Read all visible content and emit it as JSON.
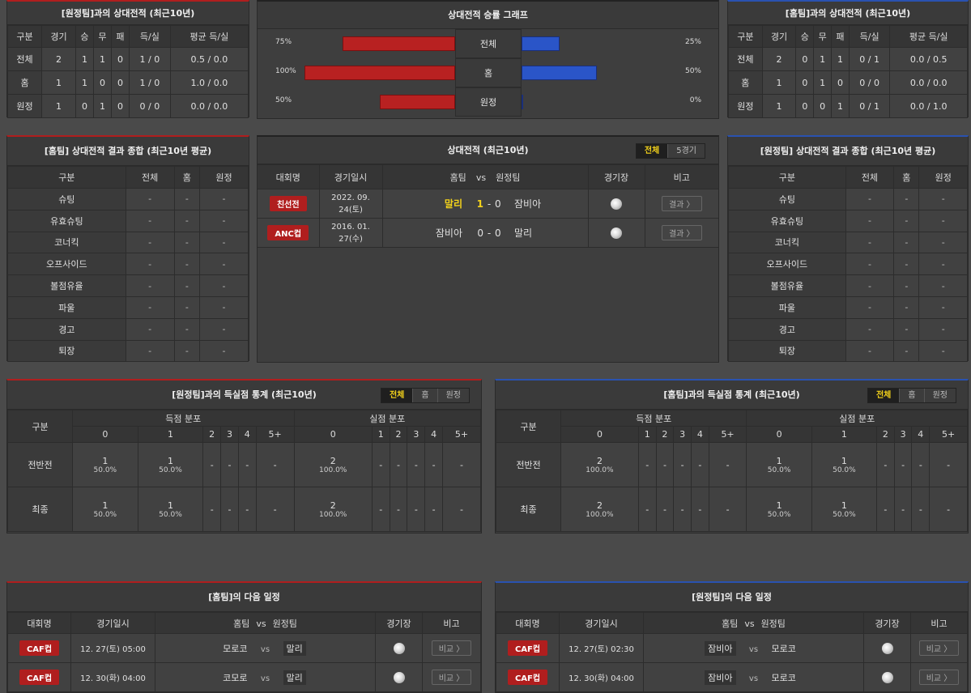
{
  "h2h_away": {
    "title": "[원정팀]과의 상대전적 (최근10년)",
    "headers": [
      "구분",
      "경기",
      "승",
      "무",
      "패",
      "득/실",
      "평균 득/실"
    ],
    "rows": [
      [
        "전체",
        "2",
        "1",
        "1",
        "0",
        "1 / 0",
        "0.5 / 0.0"
      ],
      [
        "홈",
        "1",
        "1",
        "0",
        "0",
        "1 / 0",
        "1.0 / 0.0"
      ],
      [
        "원정",
        "1",
        "0",
        "1",
        "0",
        "0 / 0",
        "0.0 / 0.0"
      ]
    ]
  },
  "graph": {
    "title": "상대전적 승률 그래프",
    "rows": [
      {
        "label": "전체",
        "left_pct": "75%",
        "right_pct": "25%",
        "left": 75,
        "right": 25
      },
      {
        "label": "홈",
        "left_pct": "100%",
        "right_pct": "50%",
        "left": 100,
        "right": 50
      },
      {
        "label": "원정",
        "left_pct": "50%",
        "right_pct": "0%",
        "left": 50,
        "right": 0
      }
    ],
    "colors": {
      "home": "#b82121",
      "away": "#2a55c8"
    }
  },
  "h2h_home": {
    "title": "[홈팀]과의 상대전적 (최근10년)",
    "headers": [
      "구분",
      "경기",
      "승",
      "무",
      "패",
      "득/실",
      "평균 득/실"
    ],
    "rows": [
      [
        "전체",
        "2",
        "0",
        "1",
        "1",
        "0 / 1",
        "0.0 / 0.5"
      ],
      [
        "홈",
        "1",
        "0",
        "1",
        "0",
        "0 / 0",
        "0.0 / 0.0"
      ],
      [
        "원정",
        "1",
        "0",
        "0",
        "1",
        "0 / 1",
        "0.0 / 1.0"
      ]
    ]
  },
  "summary_home": {
    "title": "[홈팀] 상대전적 결과 종합 (최근10년 평균)",
    "headers": [
      "구분",
      "전체",
      "홈",
      "원정"
    ],
    "rows": [
      "슈팅",
      "유효슈팅",
      "코너킥",
      "오프사이드",
      "볼점유율",
      "파울",
      "경고",
      "퇴장"
    ],
    "empty": "-"
  },
  "summary_away": {
    "title": "[원정팀] 상대전적 결과 종합 (최근10년 평균)",
    "headers": [
      "구분",
      "전체",
      "홈",
      "원정"
    ],
    "rows": [
      "슈팅",
      "유효슈팅",
      "코너킥",
      "오프사이드",
      "볼점유율",
      "파울",
      "경고",
      "퇴장"
    ],
    "empty": "-"
  },
  "recent": {
    "title": "상대전적 (최근10년)",
    "toggle": [
      "전체",
      "5경기"
    ],
    "headers": {
      "league": "대회명",
      "date": "경기일시",
      "home": "홈팀",
      "vs": "vs",
      "away": "원정팀",
      "venue": "경기장",
      "note": "비고"
    },
    "matches": [
      {
        "league": "친선전",
        "date": "2022. 09. 24(토)",
        "home": "말리",
        "hs": "1",
        "dash": "-",
        "as": "0",
        "away": "잠비아",
        "btn": "결과 〉"
      },
      {
        "league": "ANC컵",
        "date": "2016. 01. 27(수)",
        "home": "잠비아",
        "hs": "0",
        "dash": "-",
        "as": "0",
        "away": "말리",
        "btn": "결과 〉"
      }
    ]
  },
  "goals_away": {
    "title": "[원정팀]과의 득실점 통계 (최근10년)",
    "toggle": [
      "전체",
      "홈",
      "원정"
    ],
    "h_gubun": "구분",
    "h_scored": "득점 분포",
    "h_conceded": "실점 분포",
    "cols": [
      "0",
      "1",
      "2",
      "3",
      "4",
      "5+"
    ],
    "rows": [
      {
        "label": "전반전",
        "scored": [
          [
            "1",
            "50.0%"
          ],
          [
            "1",
            "50.0%"
          ],
          [
            "-",
            ""
          ],
          [
            "-",
            ""
          ],
          [
            "-",
            ""
          ],
          [
            "-",
            ""
          ]
        ],
        "conceded": [
          [
            "2",
            "100.0%"
          ],
          [
            "-",
            ""
          ],
          [
            "-",
            ""
          ],
          [
            "-",
            ""
          ],
          [
            "-",
            ""
          ],
          [
            "-",
            ""
          ]
        ]
      },
      {
        "label": "최종",
        "scored": [
          [
            "1",
            "50.0%"
          ],
          [
            "1",
            "50.0%"
          ],
          [
            "-",
            ""
          ],
          [
            "-",
            ""
          ],
          [
            "-",
            ""
          ],
          [
            "-",
            ""
          ]
        ],
        "conceded": [
          [
            "2",
            "100.0%"
          ],
          [
            "-",
            ""
          ],
          [
            "-",
            ""
          ],
          [
            "-",
            ""
          ],
          [
            "-",
            ""
          ],
          [
            "-",
            ""
          ]
        ]
      }
    ]
  },
  "goals_home": {
    "title": "[홈팀]과의 득실점 통계 (최근10년)",
    "toggle": [
      "전체",
      "홈",
      "원정"
    ],
    "h_gubun": "구분",
    "h_scored": "득점 분포",
    "h_conceded": "실점 분포",
    "cols": [
      "0",
      "1",
      "2",
      "3",
      "4",
      "5+"
    ],
    "rows": [
      {
        "label": "전반전",
        "scored": [
          [
            "2",
            "100.0%"
          ],
          [
            "-",
            ""
          ],
          [
            "-",
            ""
          ],
          [
            "-",
            ""
          ],
          [
            "-",
            ""
          ],
          [
            "-",
            ""
          ]
        ],
        "conceded": [
          [
            "1",
            "50.0%"
          ],
          [
            "1",
            "50.0%"
          ],
          [
            "-",
            ""
          ],
          [
            "-",
            ""
          ],
          [
            "-",
            ""
          ],
          [
            "-",
            ""
          ]
        ]
      },
      {
        "label": "최종",
        "scored": [
          [
            "2",
            "100.0%"
          ],
          [
            "-",
            ""
          ],
          [
            "-",
            ""
          ],
          [
            "-",
            ""
          ],
          [
            "-",
            ""
          ],
          [
            "-",
            ""
          ]
        ],
        "conceded": [
          [
            "1",
            "50.0%"
          ],
          [
            "1",
            "50.0%"
          ],
          [
            "-",
            ""
          ],
          [
            "-",
            ""
          ],
          [
            "-",
            ""
          ],
          [
            "-",
            ""
          ]
        ]
      }
    ]
  },
  "next_home": {
    "title": "[홈팀]의 다음 일정",
    "headers": {
      "league": "대회명",
      "date": "경기일시",
      "home": "홈팀",
      "vs": "vs",
      "away": "원정팀",
      "venue": "경기장",
      "note": "비고"
    },
    "matches": [
      {
        "league": "CAF컵",
        "date": "12. 27(토) 05:00",
        "home": "모로코",
        "vs": "vs",
        "away": "말리",
        "btn": "비교 〉",
        "hl": "away"
      },
      {
        "league": "CAF컵",
        "date": "12. 30(화) 04:00",
        "home": "코모로",
        "vs": "vs",
        "away": "말리",
        "btn": "비교 〉",
        "hl": "away"
      }
    ]
  },
  "next_away": {
    "title": "[원정팀]의 다음 일정",
    "headers": {
      "league": "대회명",
      "date": "경기일시",
      "home": "홈팀",
      "vs": "vs",
      "away": "원정팀",
      "venue": "경기장",
      "note": "비고"
    },
    "matches": [
      {
        "league": "CAF컵",
        "date": "12. 27(토) 02:30",
        "home": "잠비아",
        "vs": "vs",
        "away": "모로코",
        "btn": "비교 〉",
        "hl": "home"
      },
      {
        "league": "CAF컵",
        "date": "12. 30(화) 04:00",
        "home": "잠비아",
        "vs": "vs",
        "away": "모로코",
        "btn": "비교 〉",
        "hl": "home"
      }
    ]
  }
}
